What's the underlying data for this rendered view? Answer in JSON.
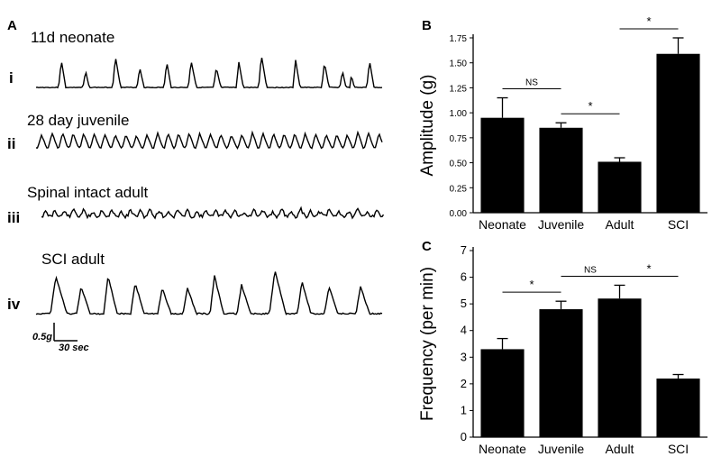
{
  "panels": {
    "A": {
      "letter": "A",
      "traces": [
        {
          "row": "i",
          "label": "11d neonate"
        },
        {
          "row": "ii",
          "label": "28 day juvenile"
        },
        {
          "row": "iii",
          "label": "Spinal intact adult"
        },
        {
          "row": "iv",
          "label": "SCI adult"
        }
      ],
      "scale_bar": {
        "amplitude": "0.5g",
        "time": "30 sec"
      }
    },
    "B": {
      "letter": "B"
    },
    "C": {
      "letter": "C"
    }
  },
  "chart_data": [
    {
      "panel": "B",
      "type": "bar",
      "categories": [
        "Neonate",
        "Juvenile",
        "Adult",
        "SCI"
      ],
      "values": [
        0.95,
        0.85,
        0.51,
        1.59
      ],
      "errors": [
        0.2,
        0.05,
        0.04,
        0.16
      ],
      "ylabel": "Amplitude (g)",
      "xlabel": "",
      "ylim": [
        0,
        1.75
      ],
      "yticks": [
        "0.00",
        "0.25",
        "0.50",
        "0.75",
        "1.00",
        "1.25",
        "1.50",
        "1.75"
      ],
      "annotations": [
        {
          "text": "NS",
          "from": "Neonate",
          "to": "Juvenile"
        },
        {
          "text": "*",
          "from": "Juvenile",
          "to": "Adult"
        },
        {
          "text": "*",
          "from": "Adult",
          "to": "SCI"
        }
      ],
      "bar_color": "#000000"
    },
    {
      "panel": "C",
      "type": "bar",
      "categories": [
        "Neonate",
        "Juvenile",
        "Adult",
        "SCI"
      ],
      "values": [
        3.3,
        4.8,
        5.2,
        2.2
      ],
      "errors": [
        0.4,
        0.3,
        0.5,
        0.15
      ],
      "ylabel": "Frequency (per min)",
      "xlabel": "",
      "ylim": [
        0,
        7
      ],
      "yticks": [
        "0",
        "1",
        "2",
        "3",
        "4",
        "5",
        "6",
        "7"
      ],
      "annotations": [
        {
          "text": "*",
          "from": "Neonate",
          "to": "Juvenile"
        },
        {
          "text": "NS",
          "from": "Juvenile",
          "to": "Adult"
        },
        {
          "text": "*",
          "from": "Adult",
          "to": "SCI"
        }
      ],
      "bar_color": "#000000"
    }
  ]
}
